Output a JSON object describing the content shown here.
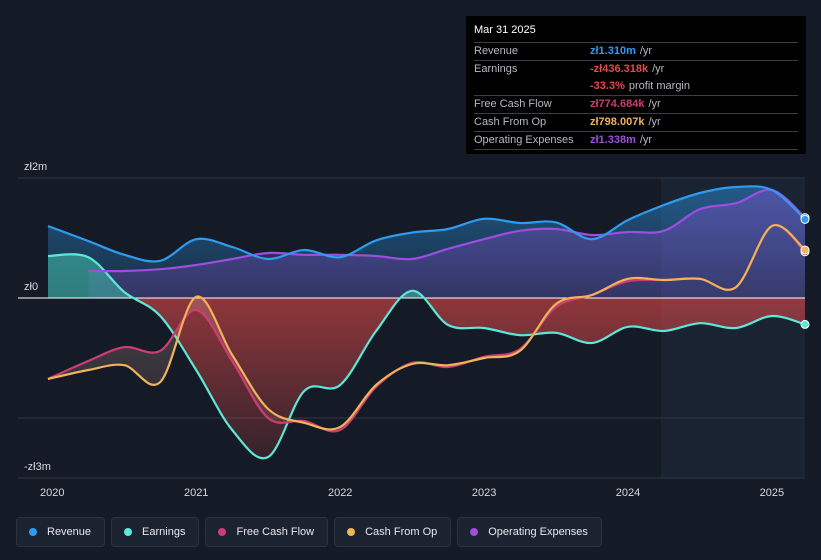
{
  "chart_data": {
    "type": "area",
    "currency": "zł",
    "y_unit": "m",
    "ylim": [
      -3.0,
      2.0
    ],
    "xlim": [
      2019.97,
      2025.23
    ],
    "y_ticks": [
      {
        "value": 2.0,
        "label": "zł2m"
      },
      {
        "value": 0.0,
        "label": "zł0"
      },
      {
        "value": -3.0,
        "label": "-zł3m"
      }
    ],
    "x_ticks": [
      {
        "value": 2020,
        "label": "2020"
      },
      {
        "value": 2021,
        "label": "2021"
      },
      {
        "value": 2022,
        "label": "2022"
      },
      {
        "value": 2023,
        "label": "2023"
      },
      {
        "value": 2024,
        "label": "2024"
      },
      {
        "value": 2025,
        "label": "2025"
      }
    ],
    "highlight_from": 2024.25,
    "series": [
      {
        "name": "Revenue",
        "key": "revenue",
        "color": "#2d9cf0",
        "fill_to_zero": true,
        "x": [
          2019.97,
          2020.25,
          2020.5,
          2020.75,
          2021.0,
          2021.25,
          2021.5,
          2021.75,
          2022.0,
          2022.25,
          2022.5,
          2022.75,
          2023.0,
          2023.25,
          2023.5,
          2023.75,
          2024.0,
          2024.25,
          2024.5,
          2024.75,
          2025.0,
          2025.23
        ],
        "values": [
          1.2,
          0.95,
          0.72,
          0.62,
          0.98,
          0.85,
          0.65,
          0.8,
          0.68,
          0.96,
          1.09,
          1.15,
          1.32,
          1.25,
          1.26,
          0.98,
          1.3,
          1.55,
          1.75,
          1.85,
          1.8,
          1.31
        ]
      },
      {
        "name": "Earnings",
        "key": "earnings",
        "color": "#5ce8d8",
        "fill_to_zero": true,
        "x": [
          2019.97,
          2020.25,
          2020.5,
          2020.75,
          2021.0,
          2021.25,
          2021.5,
          2021.75,
          2022.0,
          2022.25,
          2022.5,
          2022.75,
          2023.0,
          2023.25,
          2023.5,
          2023.75,
          2024.0,
          2024.25,
          2024.5,
          2024.75,
          2025.0,
          2025.23
        ],
        "values": [
          0.7,
          0.68,
          0.1,
          -0.3,
          -1.2,
          -2.2,
          -2.65,
          -1.55,
          -1.45,
          -0.55,
          0.12,
          -0.45,
          -0.5,
          -0.62,
          -0.58,
          -0.75,
          -0.48,
          -0.55,
          -0.42,
          -0.5,
          -0.3,
          -0.44
        ]
      },
      {
        "name": "Free Cash Flow",
        "key": "fcf",
        "color": "#cc3d74",
        "fill_to_zero": false,
        "x": [
          2019.97,
          2020.25,
          2020.5,
          2020.75,
          2021.0,
          2021.25,
          2021.5,
          2021.75,
          2022.0,
          2022.25,
          2022.5,
          2022.75,
          2023.0,
          2023.25,
          2023.5,
          2023.75,
          2024.0,
          2024.25,
          2024.5,
          2024.75,
          2025.0,
          2025.23
        ],
        "values": [
          -1.35,
          -1.05,
          -0.82,
          -0.88,
          -0.2,
          -1.05,
          -2.0,
          -2.05,
          -2.2,
          -1.48,
          -1.08,
          -1.15,
          -0.98,
          -0.85,
          -0.15,
          0.05,
          0.28,
          0.3,
          0.32,
          0.18,
          1.2,
          0.77
        ]
      },
      {
        "name": "Cash From Op",
        "key": "cfo",
        "color": "#f0b35a",
        "fill_to_zero": false,
        "x": [
          2019.97,
          2020.25,
          2020.5,
          2020.75,
          2021.0,
          2021.25,
          2021.5,
          2021.75,
          2022.0,
          2022.25,
          2022.5,
          2022.75,
          2023.0,
          2023.25,
          2023.5,
          2023.75,
          2024.0,
          2024.25,
          2024.5,
          2024.75,
          2025.0,
          2025.23
        ],
        "values": [
          -1.35,
          -1.2,
          -1.12,
          -1.4,
          0.02,
          -0.95,
          -1.85,
          -2.08,
          -2.15,
          -1.45,
          -1.1,
          -1.12,
          -1.0,
          -0.88,
          -0.1,
          0.05,
          0.32,
          0.3,
          0.32,
          0.18,
          1.2,
          0.8
        ]
      },
      {
        "name": "Operating Expenses",
        "key": "opex",
        "color": "#9d4ddf",
        "fill_to_zero": true,
        "x": [
          2020.25,
          2020.5,
          2020.75,
          2021.0,
          2021.25,
          2021.5,
          2021.75,
          2022.0,
          2022.25,
          2022.5,
          2022.75,
          2023.0,
          2023.25,
          2023.5,
          2023.75,
          2024.0,
          2024.25,
          2024.5,
          2024.75,
          2025.0,
          2025.23
        ],
        "values": [
          0.45,
          0.45,
          0.48,
          0.55,
          0.65,
          0.75,
          0.72,
          0.72,
          0.7,
          0.65,
          0.82,
          0.98,
          1.12,
          1.15,
          1.05,
          1.1,
          1.12,
          1.48,
          1.58,
          1.8,
          1.34
        ]
      }
    ]
  },
  "tooltip": {
    "date": "Mar 31 2025",
    "rows": [
      {
        "label": "Revenue",
        "value": "zł1.310m",
        "unit": "/yr",
        "color": "#2d9cf0"
      },
      {
        "label": "Earnings",
        "value": "-zł436.318k",
        "unit": "/yr",
        "color": "#e64a4a"
      },
      {
        "label": "",
        "value": "-33.3%",
        "unit": "profit margin",
        "color": "#e64a4a"
      },
      {
        "label": "Free Cash Flow",
        "value": "zł774.684k",
        "unit": "/yr",
        "color": "#cc3d74"
      },
      {
        "label": "Cash From Op",
        "value": "zł798.007k",
        "unit": "/yr",
        "color": "#f0b35a"
      },
      {
        "label": "Operating Expenses",
        "value": "zł1.338m",
        "unit": "/yr",
        "color": "#9d4ddf"
      }
    ]
  },
  "legend": [
    {
      "label": "Revenue",
      "color": "#2d9cf0"
    },
    {
      "label": "Earnings",
      "color": "#5ce8d8"
    },
    {
      "label": "Free Cash Flow",
      "color": "#cc3d74"
    },
    {
      "label": "Cash From Op",
      "color": "#f0b35a"
    },
    {
      "label": "Operating Expenses",
      "color": "#9d4ddf"
    }
  ]
}
